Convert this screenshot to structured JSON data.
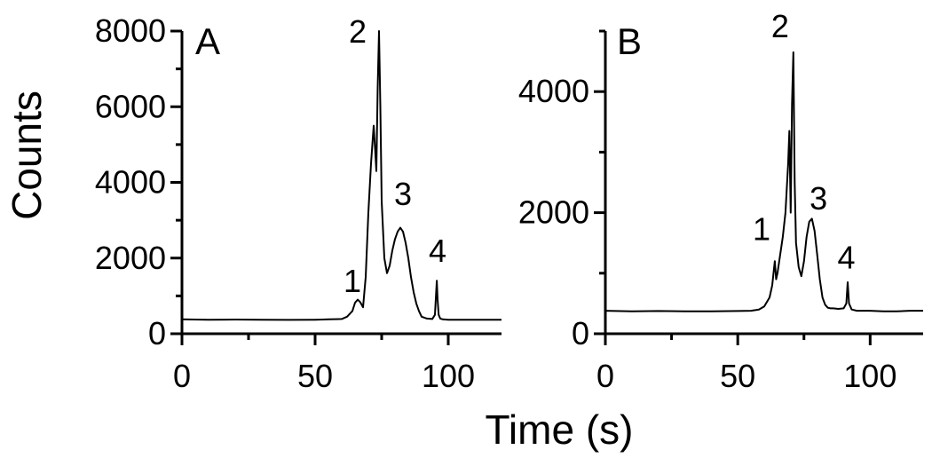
{
  "figure": {
    "xlabel": "Time (s)",
    "ylabel": "Counts"
  },
  "chart_data": [
    {
      "type": "line",
      "panel_label": "A",
      "xlim": [
        0,
        120
      ],
      "ylim": [
        0,
        8000
      ],
      "xticks": [
        0,
        50,
        100
      ],
      "xtick_labels": [
        "0",
        "50",
        "100"
      ],
      "yticks": [
        0,
        2000,
        4000,
        6000,
        8000
      ],
      "ytick_labels": [
        "0",
        "2000",
        "4000",
        "6000",
        "8000"
      ],
      "grid": false,
      "line_color": "#000000",
      "series": [
        {
          "x": [
            0,
            10,
            20,
            30,
            40,
            50,
            55,
            60,
            62,
            64,
            65,
            66,
            67,
            68,
            69,
            70,
            71,
            72,
            72.6,
            73,
            73.5,
            74,
            74.5,
            75,
            76,
            77,
            78,
            79,
            80,
            81,
            82,
            83,
            84,
            85,
            86,
            87,
            88,
            89,
            90,
            92,
            94,
            95,
            95.7,
            96,
            96.4,
            97,
            98,
            100,
            105,
            110,
            115,
            120
          ],
          "y": [
            380,
            370,
            375,
            370,
            365,
            370,
            380,
            390,
            450,
            600,
            820,
            900,
            830,
            700,
            1500,
            3200,
            4500,
            5500,
            4800,
            4300,
            6500,
            8000,
            6000,
            3500,
            2000,
            1600,
            1800,
            2200,
            2500,
            2700,
            2800,
            2700,
            2400,
            2000,
            1500,
            1100,
            800,
            600,
            450,
            400,
            390,
            500,
            1400,
            900,
            500,
            400,
            380,
            370,
            370,
            370,
            370,
            370
          ]
        }
      ],
      "annotations": [
        {
          "text": "1",
          "x": 64,
          "y": 1100
        },
        {
          "text": "2",
          "x": 66,
          "y": 7700
        },
        {
          "text": "3",
          "x": 83,
          "y": 3400
        },
        {
          "text": "4",
          "x": 96,
          "y": 1900
        }
      ]
    },
    {
      "type": "line",
      "panel_label": "B",
      "xlim": [
        0,
        120
      ],
      "ylim": [
        0,
        5000
      ],
      "xticks": [
        0,
        50,
        100
      ],
      "xtick_labels": [
        "0",
        "50",
        "100"
      ],
      "yticks": [
        0,
        2000,
        4000
      ],
      "ytick_labels": [
        "0",
        "2000",
        "4000"
      ],
      "grid": false,
      "line_color": "#000000",
      "series": [
        {
          "x": [
            0,
            10,
            20,
            30,
            40,
            50,
            55,
            58,
            60,
            62,
            63,
            64,
            64.5,
            65,
            66,
            67,
            68,
            69,
            69.5,
            70,
            70.5,
            71,
            71.5,
            72,
            72.5,
            73,
            74,
            75,
            76,
            77,
            78,
            79,
            80,
            81,
            82,
            83,
            84,
            85,
            86,
            88,
            90,
            91,
            91.5,
            92,
            93,
            95,
            100,
            105,
            110,
            115,
            120
          ],
          "y": [
            380,
            370,
            375,
            370,
            370,
            375,
            380,
            400,
            450,
            600,
            800,
            1200,
            900,
            1000,
            1300,
            1600,
            2000,
            2800,
            3350,
            2000,
            3800,
            4650,
            2500,
            1500,
            1300,
            1100,
            950,
            1200,
            1600,
            1850,
            1900,
            1700,
            1300,
            900,
            600,
            480,
            430,
            420,
            420,
            410,
            420,
            500,
            850,
            500,
            400,
            380,
            380,
            370,
            370,
            380,
            380
          ]
        }
      ],
      "annotations": [
        {
          "text": "1",
          "x": 59,
          "y": 1550
        },
        {
          "text": "2",
          "x": 66,
          "y": 4900
        },
        {
          "text": "3",
          "x": 80.5,
          "y": 2050
        },
        {
          "text": "4",
          "x": 91,
          "y": 1080
        }
      ]
    }
  ]
}
